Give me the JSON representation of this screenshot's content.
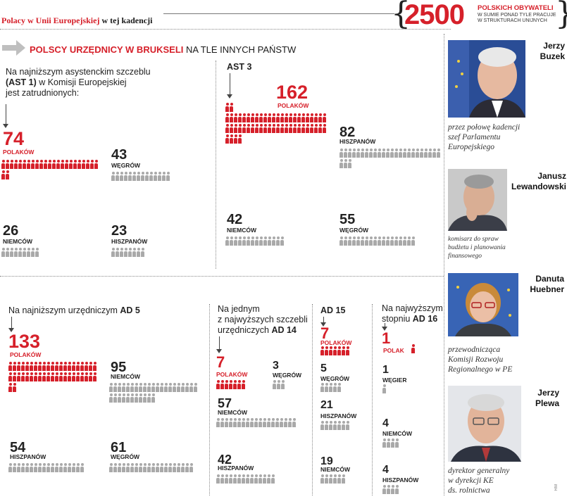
{
  "header": {
    "title_red": "Polacy w Unii Europejskiej",
    "title_rest": " w tej kadencji",
    "big_number": "2500",
    "big_number_label": "POLSKICH OBYWATELI",
    "big_number_desc_1": "W SUMIE PONAD TYLE PRACUJE",
    "big_number_desc_2": "W STRUKTURACH UNIJNYCH"
  },
  "section": {
    "title_red": "POLSCY URZĘDNICY W BRUKSELI",
    "title_rest": " NA TLE INNYCH PAŃSTW"
  },
  "colors": {
    "accent": "#d6202a",
    "grey": "#a9a9a9"
  },
  "icons": {
    "arrow": "right-arrow-icon",
    "person": "person-icon"
  },
  "panels": {
    "ast1": {
      "note_1": "Na najniższym asystenckim szczeblu",
      "note_2_bold": "(AST 1)",
      "note_2_rest": " w Komisji Europejskiej",
      "note_3": "jest zatrudnionych:",
      "groups": [
        {
          "count": "74",
          "label": "POLAKÓW",
          "value": 74,
          "highlight": true
        },
        {
          "count": "43",
          "label": "WĘGRÓW",
          "value": 43,
          "highlight": false
        },
        {
          "count": "26",
          "label": "NIEMCÓW",
          "value": 26,
          "highlight": false
        },
        {
          "count": "23",
          "label": "HISZPANÓW",
          "value": 23,
          "highlight": false
        }
      ]
    },
    "ast3": {
      "note": "AST 3",
      "groups": [
        {
          "count": "162",
          "label": "POLAKÓW",
          "value": 162,
          "highlight": true
        },
        {
          "count": "82",
          "label": "HISZPANÓW",
          "value": 82,
          "highlight": false
        },
        {
          "count": "42",
          "label": "NIEMCÓW",
          "value": 42,
          "highlight": false
        },
        {
          "count": "55",
          "label": "WĘGRÓW",
          "value": 55,
          "highlight": false
        }
      ]
    },
    "ad5": {
      "note_rest": "Na najniższym urzędniczym ",
      "note_bold": "AD 5",
      "groups": [
        {
          "count": "133",
          "label": "POLAKÓW",
          "value": 133,
          "highlight": true
        },
        {
          "count": "95",
          "label": "NIEMCÓW",
          "value": 95,
          "highlight": false
        },
        {
          "count": "54",
          "label": "HISZPANÓW",
          "value": 54,
          "highlight": false
        },
        {
          "count": "61",
          "label": "WĘGRÓW",
          "value": 61,
          "highlight": false
        }
      ]
    },
    "ad14": {
      "note_1": "Na jednym",
      "note_2": "z najwyższych szczebli",
      "note_3_rest": "urzędniczych ",
      "note_3_bold": "AD 14",
      "groups": [
        {
          "count": "7",
          "label": "POLAKÓW",
          "value": 7,
          "highlight": true
        },
        {
          "count": "3",
          "label": "WĘGRÓW",
          "value": 3,
          "highlight": false
        },
        {
          "count": "57",
          "label": "NIEMCÓW",
          "value": 57,
          "highlight": false
        },
        {
          "count": "42",
          "label": "HISZPANÓW",
          "value": 42,
          "highlight": false
        }
      ]
    },
    "ad15": {
      "note": "AD 15",
      "groups": [
        {
          "count": "7",
          "label": "POLAKÓW",
          "value": 7,
          "highlight": true
        },
        {
          "count": "5",
          "label": "WĘGRÓW",
          "value": 5,
          "highlight": false
        },
        {
          "count": "21",
          "label": "HISZPANÓW",
          "value": 21,
          "highlight": false
        },
        {
          "count": "19",
          "label": "NIEMCÓW",
          "value": 19,
          "highlight": false
        }
      ]
    },
    "ad16": {
      "note_1": "Na najwyższym",
      "note_2_rest": "stopniu ",
      "note_2_bold": "AD 16",
      "groups": [
        {
          "count": "1",
          "label": "POLAK",
          "value": 1,
          "highlight": true
        },
        {
          "count": "1",
          "label": "WĘGIER",
          "value": 1,
          "highlight": false
        },
        {
          "count": "4",
          "label": "NIEMCÓW",
          "value": 4,
          "highlight": false
        },
        {
          "count": "4",
          "label": "HISZPANÓW",
          "value": 4,
          "highlight": false
        }
      ]
    }
  },
  "people": [
    {
      "name_1": "Jerzy",
      "name_2": "Buzek",
      "desc": [
        "przez połowę kadencji",
        "szef Parlamentu",
        "Europejskiego"
      ]
    },
    {
      "name_1": "Janusz",
      "name_2": "Lewandowski",
      "desc": [
        "komisarz do spraw",
        "budżetu i planowania",
        "finansowego"
      ]
    },
    {
      "name_1": "Danuta",
      "name_2": "Huebner",
      "desc": [
        "przewodnicząca",
        "Komisji Rozwoju",
        "Regionalnego w PE"
      ]
    },
    {
      "name_1": "Jerzy",
      "name_2": "Plewa",
      "desc": [
        "dyrektor generalny",
        "w dyrekcji KE",
        "ds. rolnictwa"
      ]
    }
  ],
  "credit": "RM"
}
